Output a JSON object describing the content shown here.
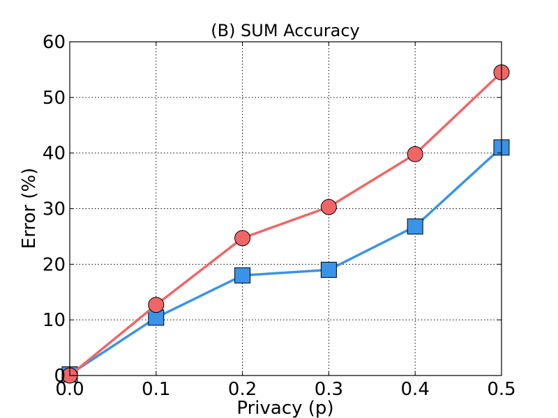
{
  "chart_data": {
    "type": "line",
    "title": "(B) SUM Accuracy",
    "xlabel": "Privacy (p)",
    "ylabel": "Error (%)",
    "x": [
      0.0,
      0.1,
      0.2,
      0.3,
      0.4,
      0.5
    ],
    "xlim": [
      0.0,
      0.5
    ],
    "ylim": [
      0,
      60
    ],
    "xticks": [
      "0.0",
      "0.1",
      "0.2",
      "0.3",
      "0.4",
      "0.5"
    ],
    "yticks": [
      "0",
      "10",
      "20",
      "30",
      "40",
      "50",
      "60"
    ],
    "grid": true,
    "series": [
      {
        "marker": "circle",
        "color": "#f06666",
        "values": [
          0.0,
          12.7,
          24.7,
          30.3,
          39.8,
          54.5
        ]
      },
      {
        "marker": "square",
        "color": "#3a93e8",
        "values": [
          0.2,
          10.4,
          18.0,
          19.0,
          26.8,
          41.0
        ]
      }
    ]
  }
}
